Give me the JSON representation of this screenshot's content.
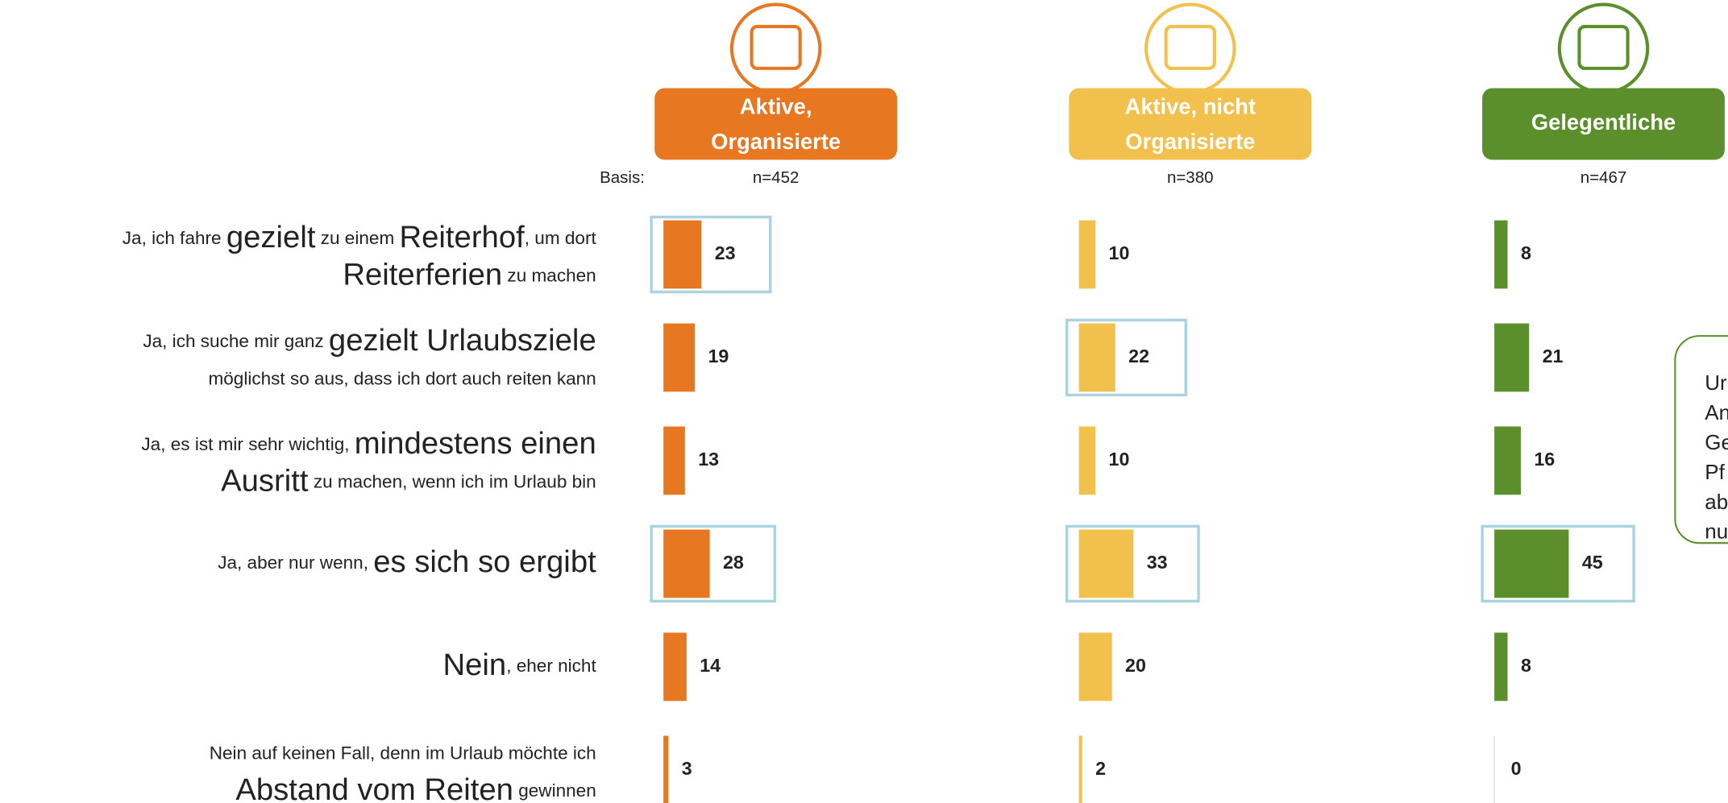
{
  "chart_data": {
    "type": "bar",
    "base_label": "Basis:",
    "categories": [
      [
        [
          {
            "text": "Ja, ich fahre "
          },
          {
            "text": "gezielt",
            "emphasis": true
          },
          {
            "text": " zu einem "
          },
          {
            "text": "Reiterhof",
            "emphasis": true
          },
          {
            "text": ", um dort"
          }
        ],
        [
          {
            "text": "Reiterferien",
            "emphasis": true
          },
          {
            "text": " zu machen"
          }
        ]
      ],
      [
        [
          {
            "text": "Ja, ich suche mir ganz "
          },
          {
            "text": "gezielt Urlaubsziele",
            "emphasis": true
          }
        ],
        [
          {
            "text": "möglichst so aus, dass ich dort auch reiten kann"
          }
        ]
      ],
      [
        [
          {
            "text": "Ja, es ist mir sehr wichtig, "
          },
          {
            "text": "mindestens einen",
            "emphasis": true
          }
        ],
        [
          {
            "text": "Ausritt",
            "emphasis": true
          },
          {
            "text": " zu machen, wenn ich im Urlaub bin"
          }
        ]
      ],
      [
        [
          {
            "text": "Ja, aber nur wenn, "
          },
          {
            "text": "es sich so ergibt",
            "emphasis": true
          }
        ]
      ],
      [
        [
          {
            "text": "Nein",
            "emphasis": true
          },
          {
            "text": ", eher nicht"
          }
        ]
      ],
      [
        [
          {
            "text": "Nein auf keinen Fall, denn im Urlaub möchte ich"
          }
        ],
        [
          {
            "text": "Abstand vom Reiten",
            "emphasis": true
          },
          {
            "text": " gewinnen"
          }
        ]
      ]
    ],
    "series": [
      {
        "name": [
          "Aktive,",
          "Organisierte"
        ],
        "base": "n=452",
        "color": "#e87722",
        "values": [
          23,
          19,
          13,
          28,
          14,
          3
        ],
        "highlighted": [
          0,
          3
        ]
      },
      {
        "name": [
          "Aktive, nicht",
          "Organisierte"
        ],
        "base": "n=380",
        "color": "#f2c04c",
        "values": [
          10,
          22,
          10,
          33,
          20,
          2
        ],
        "highlighted": [
          1,
          3
        ]
      },
      {
        "name": [
          "Gelegentliche"
        ],
        "base": "n=467",
        "color": "#5b8f2b",
        "values": [
          8,
          21,
          16,
          45,
          8,
          0
        ],
        "highlighted": [
          3
        ]
      }
    ],
    "note": [
      "Ur",
      "An",
      "Ge",
      "Pf",
      "ab",
      "nu"
    ]
  }
}
